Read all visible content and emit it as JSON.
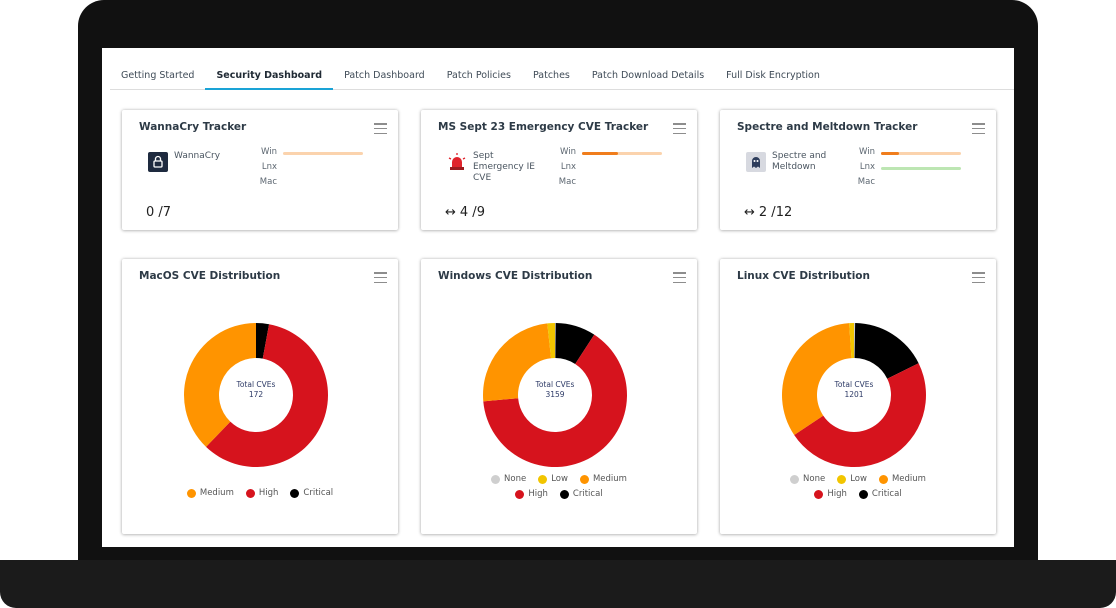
{
  "tabs": [
    {
      "label": "Getting Started",
      "active": false
    },
    {
      "label": "Security Dashboard",
      "active": true
    },
    {
      "label": "Patch Dashboard",
      "active": false
    },
    {
      "label": "Patch Policies",
      "active": false
    },
    {
      "label": "Patches",
      "active": false
    },
    {
      "label": "Patch Download Details",
      "active": false
    },
    {
      "label": "Full Disk Encryption",
      "active": false
    }
  ],
  "colors": {
    "accent": "#1aa3d6",
    "none": "#cfcfcf",
    "low": "#f2c500",
    "medium": "#ff9400",
    "high": "#d6131d",
    "critical": "#000000",
    "bar_track": "#fbd3ad",
    "bar_fill": "#f07d1c",
    "bar_green": "#bde6b3"
  },
  "trackers": [
    {
      "title": "WannaCry Tracker",
      "icon": "lock-icon",
      "name": "WannaCry",
      "os": [
        "Win",
        "Lnx",
        "Mac"
      ],
      "bars": [
        {
          "fill": 0.0,
          "color": "orange"
        },
        null,
        null
      ],
      "arrow": "",
      "count": "0 /7"
    },
    {
      "title": "MS Sept 23 Emergency CVE Tracker",
      "icon": "siren-icon",
      "name": "Sept Emergency IE CVE",
      "os": [
        "Win",
        "Lnx",
        "Mac"
      ],
      "bars": [
        {
          "fill": 0.45,
          "color": "orange"
        },
        null,
        null
      ],
      "arrow": "↔",
      "count": "4 /9"
    },
    {
      "title": "Spectre and Meltdown Tracker",
      "icon": "ghost-icon",
      "name": "Spectre and Meltdown",
      "os": [
        "Win",
        "Lnx",
        "Mac"
      ],
      "bars": [
        {
          "fill": 0.22,
          "color": "orange"
        },
        {
          "fill": 0.0,
          "color": "green"
        },
        null
      ],
      "arrow": "↔",
      "count": "2 /12"
    }
  ],
  "distributions": [
    {
      "title": "MacOS CVE Distribution",
      "center_label": "Total CVEs",
      "total": "172",
      "segments": [
        {
          "name": "Critical",
          "value": 5,
          "color": "#000000"
        },
        {
          "name": "High",
          "value": 102,
          "color": "#d6131d"
        },
        {
          "name": "Medium",
          "value": 65,
          "color": "#ff9400"
        }
      ],
      "legend": [
        [
          "Medium",
          "High",
          "Critical"
        ]
      ]
    },
    {
      "title": "Windows CVE Distribution",
      "center_label": "Total CVEs",
      "total": "3159",
      "segments": [
        {
          "name": "None",
          "value": 5,
          "color": "#cfcfcf"
        },
        {
          "name": "Critical",
          "value": 285,
          "color": "#000000"
        },
        {
          "name": "High",
          "value": 2035,
          "color": "#d6131d"
        },
        {
          "name": "Medium",
          "value": 780,
          "color": "#ff9400"
        },
        {
          "name": "Low",
          "value": 54,
          "color": "#f2c500"
        }
      ],
      "legend": [
        [
          "None",
          "Low",
          "Medium"
        ],
        [
          "High",
          "Critical"
        ]
      ]
    },
    {
      "title": "Linux CVE Distribution",
      "center_label": "Total CVEs",
      "total": "1201",
      "segments": [
        {
          "name": "None",
          "value": 3,
          "color": "#cfcfcf"
        },
        {
          "name": "Critical",
          "value": 210,
          "color": "#000000"
        },
        {
          "name": "High",
          "value": 575,
          "color": "#d6131d"
        },
        {
          "name": "Medium",
          "value": 400,
          "color": "#ff9400"
        },
        {
          "name": "Low",
          "value": 13,
          "color": "#f2c500"
        }
      ],
      "legend": [
        [
          "None",
          "Low",
          "Medium"
        ],
        [
          "High",
          "Critical"
        ]
      ]
    }
  ]
}
